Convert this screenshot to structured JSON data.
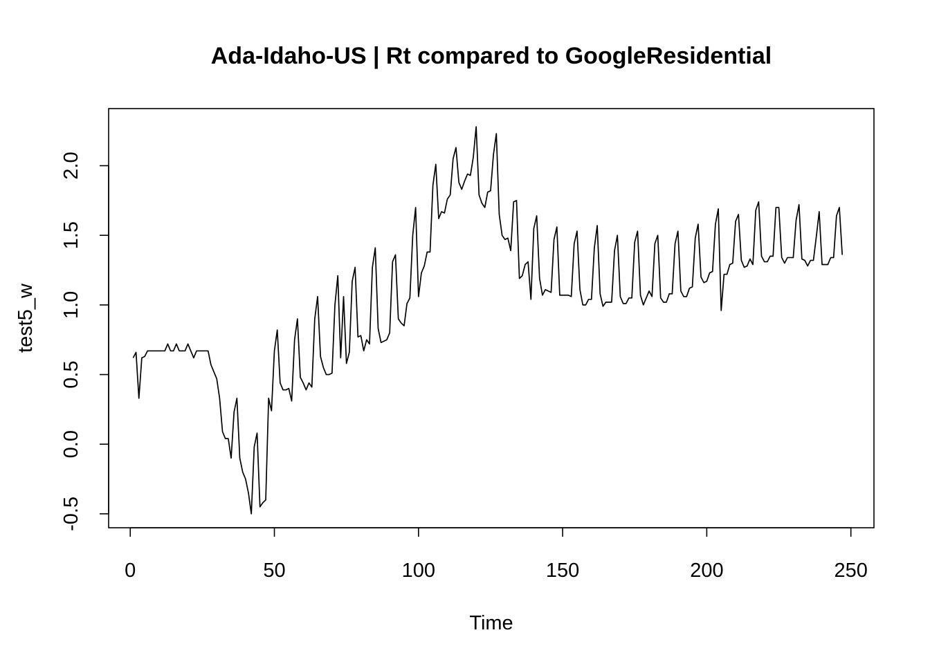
{
  "chart_data": {
    "type": "line",
    "title": "Ada-Idaho-US | Rt compared to GoogleResidential",
    "xlabel": "Time",
    "ylabel": "test5_w",
    "xlim": [
      -7.5,
      258
    ],
    "ylim": [
      -0.6,
      2.41
    ],
    "xticks": [
      0,
      50,
      100,
      150,
      200,
      250
    ],
    "yticks": [
      -0.5,
      0.0,
      0.5,
      1.0,
      1.5,
      2.0
    ],
    "xtick_labels": [
      "0",
      "50",
      "100",
      "150",
      "200",
      "250"
    ],
    "ytick_labels": [
      "-0.5",
      "0.0",
      "0.5",
      "1.0",
      "1.5",
      "2.0"
    ],
    "grid": false,
    "line_color": "#000000",
    "series": [
      {
        "x_start": 1,
        "values": [
          0.62,
          0.66,
          0.33,
          0.62,
          0.63,
          0.67,
          0.67,
          0.67,
          0.67,
          0.67,
          0.67,
          0.67,
          0.72,
          0.67,
          0.67,
          0.72,
          0.67,
          0.67,
          0.67,
          0.72,
          0.67,
          0.62,
          0.67,
          0.67,
          0.67,
          0.67,
          0.67,
          0.57,
          0.52,
          0.47,
          0.33,
          0.09,
          0.04,
          0.04,
          -0.1,
          0.23,
          0.33,
          -0.1,
          -0.2,
          -0.25,
          -0.35,
          -0.5,
          -0.02,
          0.08,
          -0.45,
          -0.42,
          -0.4,
          0.33,
          0.24,
          0.67,
          0.82,
          0.44,
          0.39,
          0.39,
          0.4,
          0.31,
          0.75,
          0.9,
          0.48,
          0.44,
          0.39,
          0.44,
          0.41,
          0.9,
          1.06,
          0.63,
          0.55,
          0.5,
          0.5,
          0.51,
          1.0,
          1.21,
          0.62,
          1.06,
          0.58,
          0.66,
          1.17,
          1.27,
          0.77,
          0.78,
          0.67,
          0.75,
          0.72,
          1.27,
          1.41,
          0.83,
          0.73,
          0.74,
          0.75,
          0.8,
          1.31,
          1.36,
          0.9,
          0.87,
          0.85,
          1.01,
          1.05,
          1.5,
          1.7,
          1.06,
          1.23,
          1.28,
          1.38,
          1.38,
          1.86,
          2.01,
          1.62,
          1.67,
          1.66,
          1.76,
          1.79,
          2.05,
          2.13,
          1.88,
          1.83,
          1.89,
          1.94,
          1.93,
          2.06,
          2.28,
          1.79,
          1.73,
          1.7,
          1.81,
          1.82,
          2.08,
          2.23,
          1.65,
          1.5,
          1.47,
          1.48,
          1.39,
          1.74,
          1.75,
          1.19,
          1.21,
          1.29,
          1.31,
          1.04,
          1.55,
          1.64,
          1.19,
          1.07,
          1.11,
          1.1,
          1.09,
          1.47,
          1.56,
          1.07,
          1.07,
          1.07,
          1.07,
          1.06,
          1.44,
          1.53,
          1.11,
          1.0,
          1.0,
          1.04,
          1.04,
          1.41,
          1.57,
          1.08,
          0.99,
          1.02,
          1.02,
          1.02,
          1.39,
          1.5,
          1.06,
          1.01,
          1.01,
          1.05,
          1.05,
          1.45,
          1.53,
          1.07,
          1.0,
          1.05,
          1.1,
          1.06,
          1.44,
          1.5,
          1.05,
          1.02,
          1.02,
          1.08,
          1.08,
          1.44,
          1.53,
          1.1,
          1.06,
          1.06,
          1.12,
          1.13,
          1.48,
          1.58,
          1.2,
          1.16,
          1.17,
          1.23,
          1.24,
          1.58,
          1.69,
          0.96,
          1.22,
          1.22,
          1.29,
          1.3,
          1.6,
          1.65,
          1.32,
          1.27,
          1.28,
          1.33,
          1.29,
          1.68,
          1.74,
          1.35,
          1.31,
          1.31,
          1.35,
          1.35,
          1.7,
          1.7,
          1.34,
          1.3,
          1.34,
          1.34,
          1.34,
          1.61,
          1.72,
          1.33,
          1.32,
          1.28,
          1.32,
          1.32,
          1.49,
          1.67,
          1.29,
          1.29,
          1.29,
          1.34,
          1.34,
          1.64,
          1.7,
          1.36
        ]
      }
    ]
  }
}
